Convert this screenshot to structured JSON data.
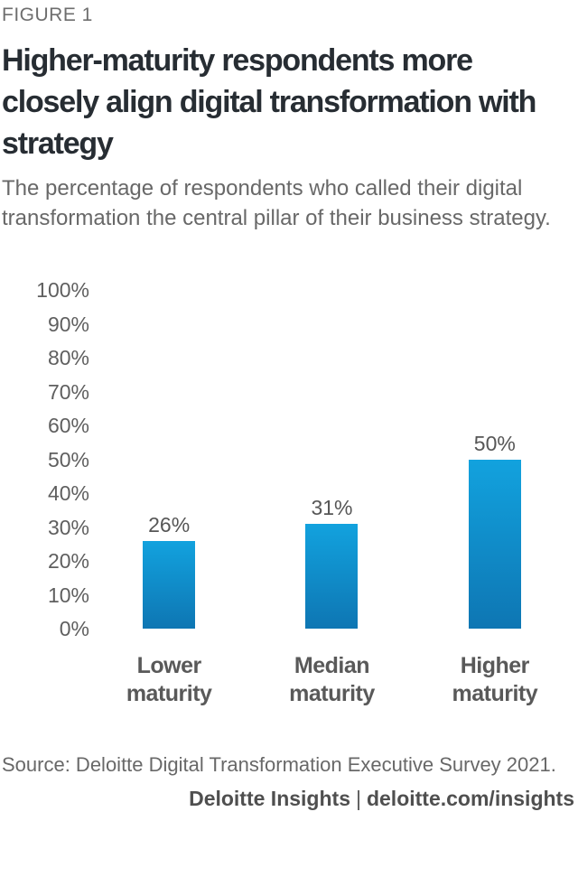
{
  "figure_label": "FIGURE 1",
  "title": "Higher-maturity respondents more closely align digital transformation with strategy",
  "subtitle": "The percentage of respondents who called their digital transformation the central pillar of their business strategy.",
  "source": "Source: Deloitte Digital Transformation Executive Survey 2021.",
  "footer": {
    "brand": "Deloitte Insights",
    "separator": "|",
    "url": "deloitte.com/insights"
  },
  "colors": {
    "title_text": "#272d33",
    "muted_text": "#686868",
    "axis_text": "#5f5f5f",
    "bar_top": "#12a2de",
    "bar_bottom": "#0e76b3",
    "background": "#ffffff"
  },
  "chart_data": {
    "type": "bar",
    "title": "Higher-maturity respondents more closely align digital transformation with strategy",
    "subtitle": "The percentage of respondents who called their digital transformation the central pillar of their business strategy.",
    "categories": [
      "Lower maturity",
      "Median maturity",
      "Higher maturity"
    ],
    "values": [
      26,
      31,
      50
    ],
    "value_labels": [
      "26%",
      "31%",
      "50%"
    ],
    "xlabel": "",
    "ylabel": "",
    "ylim": [
      0,
      100
    ],
    "y_ticks": [
      {
        "value": 0,
        "label": "0%"
      },
      {
        "value": 10,
        "label": "10%"
      },
      {
        "value": 20,
        "label": "20%"
      },
      {
        "value": 30,
        "label": "30%"
      },
      {
        "value": 40,
        "label": "40%"
      },
      {
        "value": 50,
        "label": "50%"
      },
      {
        "value": 60,
        "label": "60%"
      },
      {
        "value": 70,
        "label": "70%"
      },
      {
        "value": 80,
        "label": "80%"
      },
      {
        "value": 90,
        "label": "90%"
      },
      {
        "value": 100,
        "label": "100%"
      }
    ],
    "grid": false,
    "legend": false,
    "bar_color_top": "#12a2de",
    "bar_color_bottom": "#0e76b3"
  }
}
